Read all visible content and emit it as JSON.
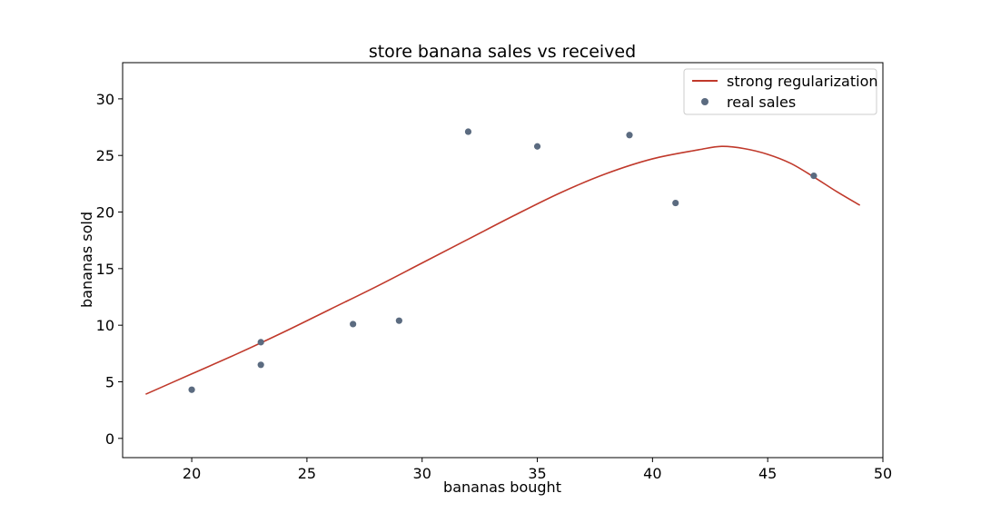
{
  "chart_data": {
    "type": "line+scatter",
    "title": "store banana sales vs received",
    "xlabel": "bananas bought",
    "ylabel": "bananas sold",
    "xlim": [
      17,
      50
    ],
    "ylim": [
      -1.7,
      33.2
    ],
    "xticks": [
      20,
      25,
      30,
      35,
      40,
      45,
      50
    ],
    "yticks": [
      0,
      5,
      10,
      15,
      20,
      25,
      30
    ],
    "grid": false,
    "legend_position": "top-right",
    "series": [
      {
        "name": "strong regularization",
        "kind": "line",
        "color": "#c0392b",
        "x": [
          18,
          20,
          22,
          24,
          26,
          28,
          30,
          32,
          34,
          36,
          38,
          40,
          42,
          43,
          44,
          45,
          46,
          47,
          48,
          49
        ],
        "y": [
          3.9,
          5.7,
          7.5,
          9.4,
          11.4,
          13.4,
          15.5,
          17.6,
          19.7,
          21.7,
          23.4,
          24.7,
          25.5,
          25.8,
          25.6,
          25.1,
          24.3,
          23.1,
          21.8,
          20.6
        ]
      },
      {
        "name": "real sales",
        "kind": "scatter",
        "color": "#5b6b80",
        "x": [
          20,
          23,
          23,
          27,
          29,
          32,
          35,
          39,
          41,
          47
        ],
        "y": [
          4.3,
          8.5,
          6.5,
          10.1,
          10.4,
          27.1,
          25.8,
          26.8,
          20.8,
          23.2
        ]
      }
    ]
  }
}
